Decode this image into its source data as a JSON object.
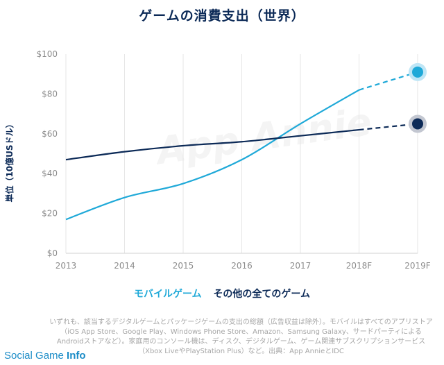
{
  "chart_data": {
    "type": "line",
    "title": "ゲームの消費支出（世界）",
    "ylabel": "単位（10億USドル）",
    "xlabel": "",
    "categories": [
      "2013",
      "2014",
      "2015",
      "2016",
      "2017",
      "2018F",
      "2019F"
    ],
    "ylim": [
      0,
      100
    ],
    "yticks": [
      "$0",
      "$20",
      "$40",
      "$60",
      "$80",
      "$100"
    ],
    "grid": "vertical",
    "legend_position": "bottom",
    "series": [
      {
        "name": "モバイルゲーム",
        "color": "#1fa9d8",
        "values": [
          17,
          28,
          35,
          47,
          65,
          82,
          91
        ],
        "forecast_from_index": 5
      },
      {
        "name": "その他の全てのゲーム",
        "color": "#0c2a57",
        "values": [
          47,
          51,
          54,
          56,
          59,
          62,
          65
        ],
        "forecast_from_index": 5
      }
    ]
  },
  "note": "いずれも、該当するデジタルゲームとパッケージゲームの支出の総額（広告収益は除外）。モバイルはすべてのアプリストア（iOS App Store、Google Play、Windows Phone Store、Amazon、Samsung Galaxy、サードパーティによるAndroidストアなど）。家庭用のコンソール機は、ディスク、デジタルゲーム、ゲーム関連サブスクリプションサービス（Xbox LiveやPlayStation Plus）など。出典：App AnnieとIDC",
  "watermark": "App Annie",
  "brand": {
    "prefix": "Social Game ",
    "suffix": "Info"
  }
}
